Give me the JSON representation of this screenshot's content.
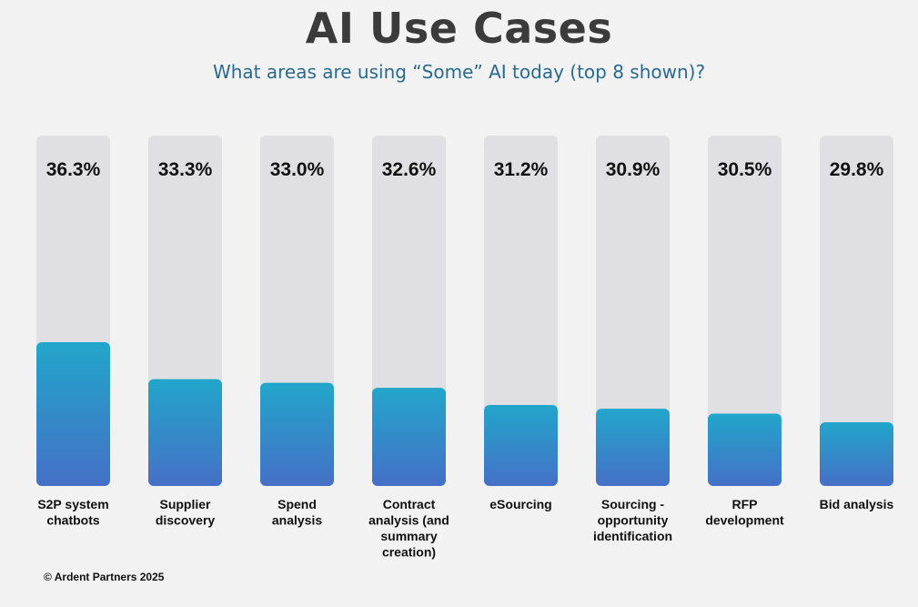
{
  "chart_data": {
    "type": "bar",
    "title": "AI Use Cases",
    "subtitle": "What areas are using “Some” AI today (top 8 shown)?",
    "categories": [
      [
        "S2P system",
        "chatbots"
      ],
      [
        "Supplier",
        "discovery"
      ],
      [
        "Spend",
        "analysis"
      ],
      [
        "Contract",
        "analysis (and",
        "summary",
        "creation)"
      ],
      [
        "eSourcing"
      ],
      [
        "Sourcing -",
        "opportunity",
        "identification"
      ],
      [
        "RFP",
        "development"
      ],
      [
        "Bid analysis"
      ]
    ],
    "values": [
      36.3,
      33.3,
      33.0,
      32.6,
      31.2,
      30.9,
      30.5,
      29.8
    ],
    "value_labels": [
      "36.3%",
      "33.3%",
      "33.0%",
      "32.6%",
      "31.2%",
      "30.9%",
      "30.5%",
      "29.8%"
    ],
    "xlabel": "",
    "ylabel": "",
    "grid": false,
    "legend": "none",
    "colors": {
      "bar_top": "#22a6cb",
      "bar_bottom": "#4570c6",
      "track": "#e0e0e4"
    }
  },
  "footer": "© Ardent Partners 2025"
}
